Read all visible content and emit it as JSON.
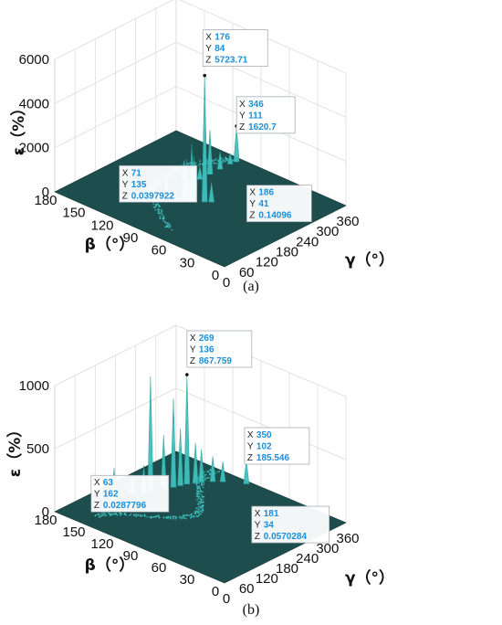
{
  "chart_data": [
    {
      "type": "surface",
      "caption": "(a)",
      "xlabel": "γ（°）",
      "ylabel": "β（°）",
      "zlabel": "ε（%）",
      "xlim": [
        0,
        360
      ],
      "ylim": [
        0,
        180
      ],
      "zlim": [
        0,
        6000
      ],
      "xticks": [
        0,
        60,
        120,
        180,
        240,
        300,
        360
      ],
      "yticks": [
        0,
        30,
        60,
        90,
        120,
        150,
        180
      ],
      "zticks": [
        0,
        2000,
        4000,
        6000
      ],
      "grid": true,
      "surface_color": "#1e4d4d",
      "peak_color": "#3fc0bd",
      "datatips": [
        {
          "name": "peak-top",
          "x": 176,
          "y": 84,
          "z": 5723.71,
          "xl": "X",
          "yl": "Y",
          "zl": "Z",
          "xv": "176",
          "yv": "84",
          "zv": "5723.71"
        },
        {
          "name": "peak-right",
          "x": 346,
          "y": 111,
          "z": 1620.7,
          "xl": "X",
          "yl": "Y",
          "zl": "Z",
          "xv": "346",
          "yv": "111",
          "zv": "1620.7"
        },
        {
          "name": "low-left",
          "x": 71,
          "y": 135,
          "z": 0.0397922,
          "xl": "X",
          "yl": "Y",
          "zl": "Z",
          "xv": "71",
          "yv": "135",
          "zv": "0.0397922"
        },
        {
          "name": "low-front",
          "x": 186,
          "y": 41,
          "z": 0.14096,
          "xl": "X",
          "yl": "Y",
          "zl": "Z",
          "xv": "186",
          "yv": "41",
          "zv": "0.14096"
        }
      ],
      "spikes": [
        [
          176,
          84,
          5723.71
        ],
        [
          150,
          96,
          1900
        ],
        [
          160,
          92,
          2600
        ],
        [
          168,
          100,
          1700
        ],
        [
          130,
          108,
          1300
        ],
        [
          200,
          104,
          1500
        ],
        [
          215,
          120,
          900
        ],
        [
          270,
          112,
          2000
        ],
        [
          300,
          112,
          800
        ],
        [
          346,
          111,
          1620.7
        ],
        [
          330,
          112,
          500
        ],
        [
          110,
          120,
          500
        ],
        [
          240,
          112,
          600
        ],
        [
          185,
          80,
          900
        ]
      ]
    },
    {
      "type": "surface",
      "caption": "(b)",
      "xlabel": "γ（°）",
      "ylabel": "β（°）",
      "zlabel": "ε（%）",
      "xlim": [
        0,
        360
      ],
      "ylim": [
        0,
        180
      ],
      "zlim": [
        0,
        1000
      ],
      "xticks": [
        0,
        60,
        120,
        180,
        240,
        300,
        360
      ],
      "yticks": [
        0,
        30,
        60,
        90,
        120,
        150,
        180
      ],
      "zticks": [
        0,
        500,
        1000
      ],
      "grid": true,
      "surface_color": "#1e4d4d",
      "peak_color": "#3fc0bd",
      "datatips": [
        {
          "name": "peak-top",
          "x": 269,
          "y": 136,
          "z": 867.759,
          "xl": "X",
          "yl": "Y",
          "zl": "Z",
          "xv": "269",
          "yv": "136",
          "zv": "867.759"
        },
        {
          "name": "peak-right",
          "x": 350,
          "y": 102,
          "z": 185.546,
          "xl": "X",
          "yl": "Y",
          "zl": "Z",
          "xv": "350",
          "yv": "102",
          "zv": "185.546"
        },
        {
          "name": "low-left",
          "x": 63,
          "y": 162,
          "z": 0.0287796,
          "xl": "X",
          "yl": "Y",
          "zl": "Z",
          "xv": "63",
          "yv": "162",
          "zv": "0.0287796"
        },
        {
          "name": "low-front",
          "x": 181,
          "y": 34,
          "z": 0.0570284,
          "xl": "X",
          "yl": "Y",
          "zl": "Z",
          "xv": "181",
          "yv": "34",
          "zv": "0.0570284"
        }
      ],
      "spikes": [
        [
          269,
          136,
          867.759
        ],
        [
          200,
          150,
          900
        ],
        [
          240,
          140,
          700
        ],
        [
          225,
          145,
          420
        ],
        [
          255,
          138,
          450
        ],
        [
          283,
          132,
          320
        ],
        [
          295,
          130,
          260
        ],
        [
          312,
          124,
          200
        ],
        [
          325,
          118,
          160
        ],
        [
          350,
          102,
          185.546
        ],
        [
          120,
          160,
          250
        ],
        [
          95,
          165,
          120
        ],
        [
          160,
          155,
          150
        ],
        [
          180,
          150,
          220
        ]
      ]
    }
  ]
}
